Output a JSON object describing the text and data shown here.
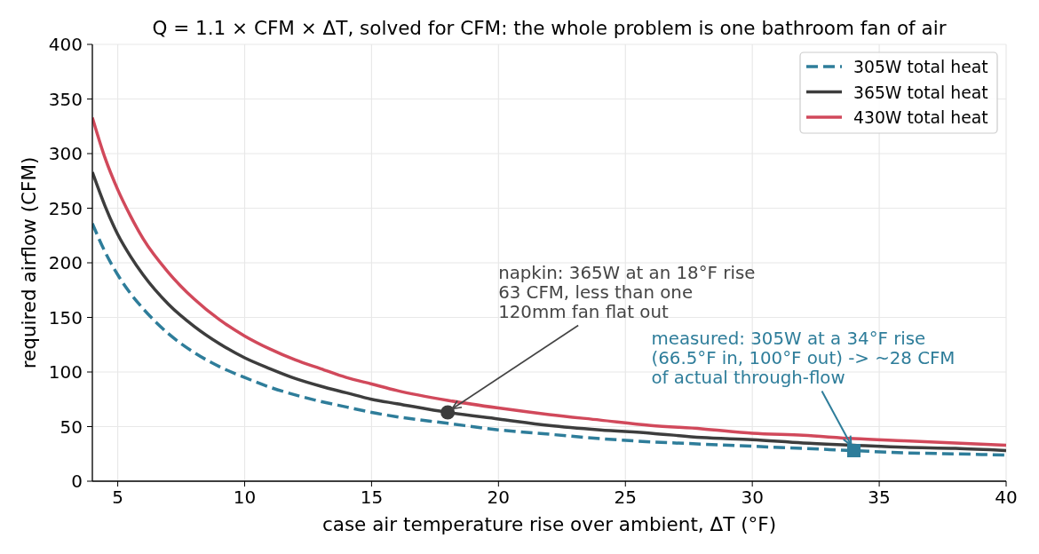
{
  "chart_data": {
    "type": "line",
    "title": "Q = 1.1 × CFM × ΔT, solved for CFM: the whole problem is one bathroom fan of air",
    "xlabel": "case air temperature rise over ambient, ΔT (°F)",
    "ylabel": "required airflow (CFM)",
    "x": [
      4,
      4.5,
      5,
      5.5,
      6,
      7,
      8,
      9,
      10,
      11,
      12,
      13,
      14,
      15,
      16,
      18,
      20,
      22,
      24,
      26,
      28,
      30,
      32,
      34,
      36,
      38,
      40
    ],
    "series": [
      {
        "name": "305W total heat",
        "color": "#2e7d9a",
        "line_style": "dashed",
        "values": [
          236,
          210,
          189,
          172,
          158,
          135,
          118,
          105,
          95,
          86,
          79,
          73,
          68,
          63,
          59,
          53,
          47,
          43,
          39,
          36,
          34,
          32,
          30,
          28,
          26,
          25,
          24
        ]
      },
      {
        "name": "365W total heat",
        "color": "#3d3d3d",
        "values": [
          283,
          252,
          226,
          206,
          189,
          162,
          142,
          126,
          113,
          103,
          94,
          87,
          81,
          75,
          71,
          63,
          57,
          51,
          47,
          44,
          40,
          38,
          35,
          33,
          31,
          30,
          28
        ]
      },
      {
        "name": "430W total heat",
        "color": "#d1495b",
        "values": [
          333,
          296,
          267,
          243,
          222,
          191,
          167,
          148,
          133,
          121,
          111,
          103,
          95,
          89,
          83,
          74,
          67,
          61,
          56,
          51,
          48,
          44,
          42,
          39,
          37,
          35,
          33
        ]
      },
      {
        "type": "scatter",
        "x": [
          18
        ],
        "values": [
          63
        ],
        "color": "#3d3d3d",
        "marker": "circle"
      },
      {
        "type": "scatter",
        "x": [
          34
        ],
        "values": [
          28
        ],
        "color": "#2e7d9a",
        "marker": "square"
      }
    ],
    "xlim": [
      4,
      40
    ],
    "xticks": [
      5,
      10,
      15,
      20,
      25,
      30,
      35,
      40
    ],
    "ylim": [
      0,
      400
    ],
    "yticks": [
      0,
      50,
      100,
      150,
      200,
      250,
      300,
      350,
      400
    ],
    "grid": true,
    "legend": "top right",
    "marker": "none",
    "line_style": "solid",
    "annotations": [
      {
        "text": "napkin: 365W at an 18°F rise\n63 CFM, less than one\n120mm fan flat out",
        "x": 18,
        "y": 63
      },
      {
        "text": "measured: 305W at a 34°F rise\n(66.5°F in, 100°F out) -> ~28 CFM\nof actual through-flow",
        "x": 34,
        "y": 28
      }
    ]
  }
}
